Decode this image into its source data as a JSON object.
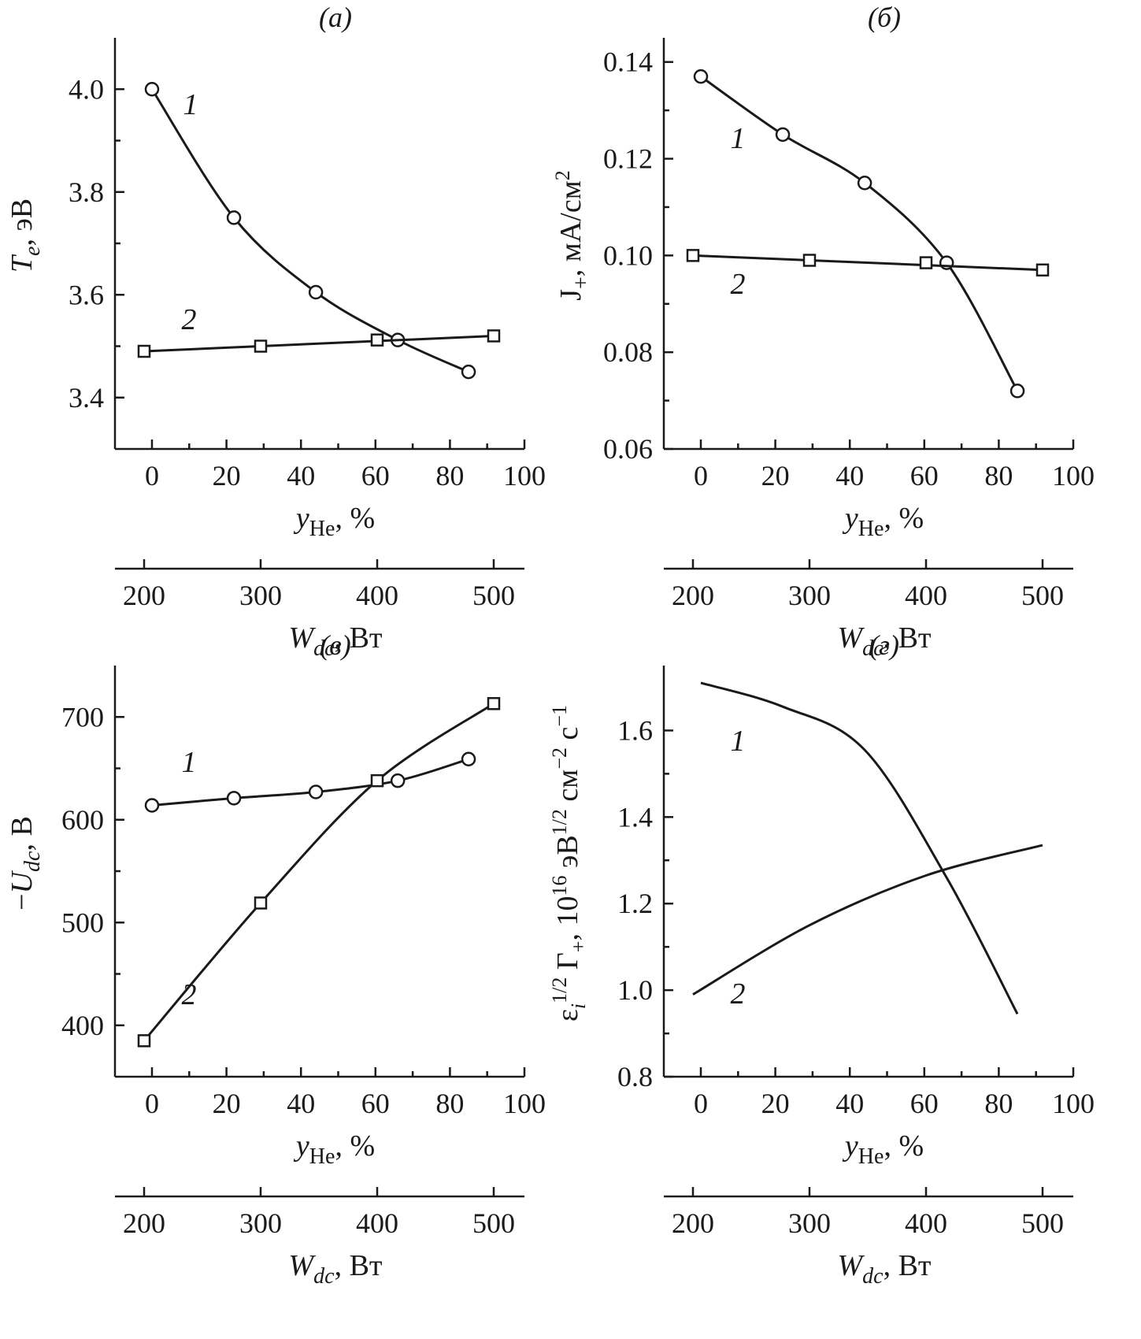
{
  "chart_data": [
    {
      "type": "line",
      "title": "(а)",
      "x": {
        "label": "y_He, %",
        "range": [
          -10,
          100
        ],
        "ticks": [
          0,
          20,
          40,
          60,
          80,
          100
        ]
      },
      "x2": {
        "label": "W_dc, Вт",
        "range": [
          170,
          500
        ],
        "ticks": [
          200,
          300,
          400,
          500
        ]
      },
      "y": {
        "label": "T_e, эВ",
        "range": [
          3.3,
          4.1
        ],
        "ticks": [
          3.4,
          3.6,
          3.8,
          4.0
        ]
      },
      "series": [
        {
          "name": "1",
          "axis": "x",
          "marker": "circle",
          "points": [
            [
              0,
              4.0
            ],
            [
              22,
              3.75
            ],
            [
              44,
              3.605
            ],
            [
              66,
              3.512
            ],
            [
              85,
              3.45
            ]
          ]
        },
        {
          "name": "2",
          "axis": "x2",
          "marker": "square",
          "points": [
            [
              200,
              3.49
            ],
            [
              300,
              3.5
            ],
            [
              400,
              3.512
            ],
            [
              500,
              3.52
            ]
          ]
        }
      ]
    },
    {
      "type": "line",
      "title": "(б)",
      "x": {
        "label": "y_He, %",
        "range": [
          -10,
          100
        ],
        "ticks": [
          0,
          20,
          40,
          60,
          80,
          100
        ]
      },
      "x2": {
        "label": "W_dc, Вт",
        "range": [
          170,
          500
        ],
        "ticks": [
          200,
          300,
          400,
          500
        ]
      },
      "y": {
        "label": "J+, мА/см2",
        "range": [
          0.06,
          0.145
        ],
        "ticks": [
          0.06,
          0.08,
          0.1,
          0.12,
          0.14
        ]
      },
      "series": [
        {
          "name": "1",
          "axis": "x",
          "marker": "circle",
          "points": [
            [
              0,
              0.137
            ],
            [
              22,
              0.125
            ],
            [
              44,
              0.115
            ],
            [
              66,
              0.0985
            ],
            [
              85,
              0.072
            ]
          ]
        },
        {
          "name": "2",
          "axis": "x2",
          "marker": "square",
          "points": [
            [
              200,
              0.1
            ],
            [
              300,
              0.099
            ],
            [
              400,
              0.0985
            ],
            [
              500,
              0.097
            ]
          ]
        }
      ]
    },
    {
      "type": "line",
      "title": "(в)",
      "x": {
        "label": "y_He, %",
        "range": [
          -10,
          100
        ],
        "ticks": [
          0,
          20,
          40,
          60,
          80,
          100
        ]
      },
      "x2": {
        "label": "W_dc, Вт",
        "range": [
          170,
          500
        ],
        "ticks": [
          200,
          300,
          400,
          500
        ]
      },
      "y": {
        "label": "−U_dc, В",
        "range": [
          350,
          750
        ],
        "ticks": [
          400,
          500,
          600,
          700
        ]
      },
      "series": [
        {
          "name": "1",
          "axis": "x",
          "marker": "circle",
          "points": [
            [
              0,
              614
            ],
            [
              22,
              621
            ],
            [
              44,
              627
            ],
            [
              66,
              638
            ],
            [
              85,
              659
            ]
          ]
        },
        {
          "name": "2",
          "axis": "x2",
          "marker": "square",
          "points": [
            [
              200,
              385
            ],
            [
              300,
              519
            ],
            [
              400,
              638
            ],
            [
              500,
              713
            ]
          ]
        }
      ]
    },
    {
      "type": "line",
      "title": "(г)",
      "x": {
        "label": "y_He, %",
        "range": [
          -10,
          100
        ],
        "ticks": [
          0,
          20,
          40,
          60,
          80,
          100
        ]
      },
      "x2": {
        "label": "W_dc, Вт",
        "range": [
          170,
          500
        ],
        "ticks": [
          200,
          300,
          400,
          500
        ]
      },
      "y": {
        "label": "ε_i^1/2 Γ+, 10^16 эВ^1/2 см^−2 с^−1",
        "range": [
          0.8,
          1.75
        ],
        "ticks": [
          0.8,
          1.0,
          1.2,
          1.4,
          1.6
        ]
      },
      "series": [
        {
          "name": "1",
          "axis": "x",
          "marker": "none",
          "points": [
            [
              0,
              1.71
            ],
            [
              22,
              1.655
            ],
            [
              44,
              1.555
            ],
            [
              66,
              1.26
            ],
            [
              85,
              0.945
            ]
          ]
        },
        {
          "name": "2",
          "axis": "x2",
          "marker": "none",
          "points": [
            [
              200,
              0.99
            ],
            [
              300,
              1.15
            ],
            [
              400,
              1.265
            ],
            [
              500,
              1.335
            ]
          ]
        }
      ]
    }
  ]
}
